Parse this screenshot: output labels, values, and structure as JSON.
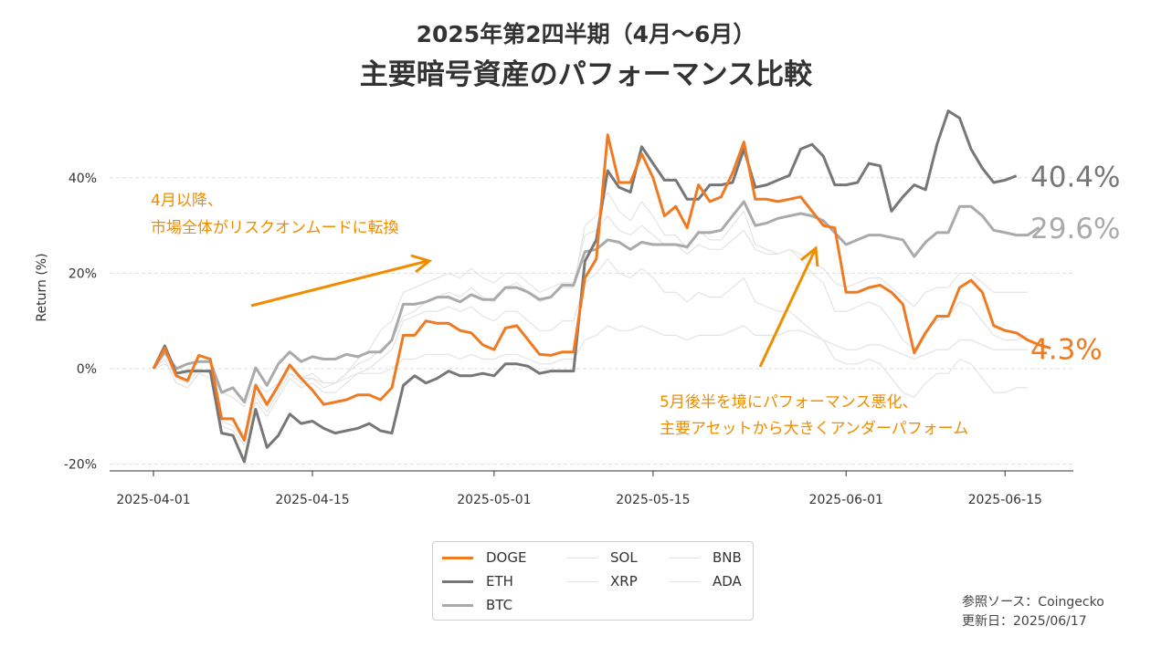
{
  "title": {
    "line1": "2025年第2四半期（4月〜6月）",
    "line2": "主要暗号資産のパフォーマンス比較"
  },
  "annotations": {
    "april_line1": "4月以降、",
    "april_line2": "市場全体がリスクオンムードに転換",
    "may_line1": "5月後半を境にパフォーマンス悪化、",
    "may_line2": "主要アセットから大きくアンダーパフォーム"
  },
  "source": {
    "line1": "参照ソース：Coingecko",
    "line2": "更新日：2025/06/17"
  },
  "colors": {
    "DOGE": "#f07a22",
    "ETH": "#777777",
    "BTC": "#aaaaaa",
    "faint": "#e4e4e4",
    "annotation": "#f08c00"
  },
  "chart_data": {
    "type": "line",
    "ylabel": "Return (%)",
    "ylim": [
      -22,
      57
    ],
    "yticks": [
      -20,
      0,
      20,
      40
    ],
    "ytick_labels": [
      "-20%",
      "0%",
      "20%",
      "40%"
    ],
    "xticks": [
      "2025-04-01",
      "2025-04-15",
      "2025-05-01",
      "2025-05-15",
      "2025-06-01",
      "2025-06-15"
    ],
    "x_start": "2025-04-01",
    "grid": "horizontal dashed",
    "legend_position": "bottom-center",
    "end_labels": {
      "DOGE": "4.3%",
      "ETH": "40.4%",
      "BTC": "29.6%"
    },
    "series": [
      {
        "name": "DOGE",
        "values": [
          0,
          4.3,
          -1.5,
          -2.5,
          2.8,
          2,
          -10.5,
          -10.5,
          -15,
          -3.5,
          -7.5,
          -3.5,
          0.8,
          -2,
          -4.5,
          -7.5,
          -7,
          -6.5,
          -5.5,
          -5.5,
          -6.5,
          -4,
          7,
          7,
          10,
          9.5,
          9.5,
          8,
          7.5,
          5,
          4,
          8.5,
          9,
          6,
          3,
          2.8,
          3.5,
          3.5,
          19,
          23,
          49,
          39,
          39,
          45,
          40,
          32,
          34,
          29.5,
          38.5,
          35,
          36,
          41,
          47.5,
          35.5,
          35.5,
          35,
          35.5,
          36,
          33,
          30,
          29.5,
          16,
          16,
          17,
          17.5,
          16,
          13.5,
          3.3,
          7.5,
          11,
          11,
          17,
          18.5,
          16,
          9,
          8,
          7.5,
          6,
          5,
          4.3
        ]
      },
      {
        "name": "ETH",
        "values": [
          0,
          4.8,
          -1,
          -0.5,
          -0.5,
          -0.5,
          -13.5,
          -14,
          -19.5,
          -8.5,
          -16.5,
          -14,
          -9.5,
          -11.5,
          -11,
          -12.5,
          -13.5,
          -13,
          -12.5,
          -11.5,
          -13,
          -13.5,
          -3.5,
          -1.5,
          -3,
          -2,
          -0.5,
          -1.5,
          -1.5,
          -1,
          -1.5,
          1,
          1,
          0.5,
          -1,
          -0.5,
          -0.5,
          -0.5,
          22.5,
          27,
          41.5,
          38,
          37,
          46.5,
          43,
          39.5,
          39.5,
          35.5,
          35.5,
          38.5,
          38.5,
          39,
          46,
          38,
          38.5,
          39.5,
          40.5,
          46,
          47,
          44.5,
          38.5,
          38.5,
          39,
          43,
          42.5,
          33,
          36,
          38.5,
          37.5,
          47,
          54,
          52.5,
          46,
          42,
          39,
          39.5,
          40.4
        ]
      },
      {
        "name": "BTC",
        "values": [
          0,
          3.5,
          0,
          1,
          1.5,
          1.5,
          -5,
          -4,
          -7,
          0.2,
          -3.5,
          1,
          3.5,
          1.5,
          2.5,
          2,
          2,
          3,
          2.5,
          3.5,
          3.5,
          6,
          13.5,
          13.5,
          14,
          15,
          15,
          14,
          15.5,
          14.5,
          14.5,
          17,
          17,
          16,
          14.5,
          15,
          17.5,
          17.5,
          24.5,
          25,
          27,
          26.5,
          25,
          26.5,
          26,
          26,
          26,
          25.5,
          28.5,
          28.5,
          29,
          32,
          35,
          30,
          30.5,
          31.5,
          32,
          32.5,
          32,
          31,
          28.5,
          26,
          27,
          28,
          28,
          27.5,
          27,
          23.5,
          26.5,
          28.5,
          28.5,
          34,
          34,
          32,
          29,
          28.5,
          28,
          28,
          29.6
        ]
      },
      {
        "name": "SOL",
        "values": [
          0,
          2,
          -3,
          -4,
          -1,
          -2,
          -11,
          -12,
          -15,
          -6,
          -9,
          -5,
          -1,
          -3,
          -2,
          -4,
          -3,
          -1,
          1,
          2,
          4,
          6,
          11,
          12,
          14,
          15,
          16,
          15,
          17,
          15,
          14,
          17,
          18,
          16,
          14,
          15,
          17,
          17,
          30,
          32,
          37,
          33,
          31,
          35,
          32,
          28,
          28,
          25,
          29,
          27,
          27,
          30,
          33,
          26,
          25,
          24,
          25,
          23,
          20,
          18,
          12,
          12,
          13,
          14,
          13,
          10,
          6,
          4,
          8,
          10,
          11,
          14,
          13,
          10,
          7,
          6,
          6,
          7
        ]
      },
      {
        "name": "XRP",
        "values": [
          0,
          3,
          -2,
          -3,
          0,
          -1,
          -10,
          -11,
          -14,
          -5,
          -8,
          -4,
          0,
          -2,
          -1,
          -3,
          -3,
          -1,
          2,
          4,
          8,
          10,
          16,
          17,
          18,
          19,
          20,
          19,
          21,
          19,
          18,
          20,
          20,
          18,
          16,
          17,
          18,
          18,
          28,
          29,
          32,
          29,
          28,
          30,
          28,
          26,
          26,
          24,
          26,
          25,
          25,
          27,
          29,
          25,
          24,
          24,
          25,
          24,
          22,
          21,
          18,
          17,
          18,
          19,
          19,
          17,
          15,
          13,
          16,
          17,
          17,
          20,
          20,
          18,
          16,
          16,
          16,
          16
        ]
      },
      {
        "name": "BNB",
        "values": [
          0,
          1,
          -1,
          -1,
          0,
          -1,
          -5,
          -6,
          -8,
          -3,
          -5,
          -3,
          -1,
          -2,
          -2,
          -3,
          -3,
          -2,
          -1,
          -1,
          -1,
          0,
          2,
          2,
          3,
          3,
          3,
          2,
          3,
          2,
          2,
          3,
          3,
          2,
          1,
          1,
          2,
          2,
          6,
          7,
          9,
          8,
          8,
          9,
          8,
          7,
          7,
          6,
          7,
          7,
          7,
          8,
          9,
          7,
          7,
          7,
          8,
          8,
          7,
          6,
          5,
          4,
          4,
          5,
          5,
          4,
          3,
          2,
          3,
          4,
          4,
          6,
          6,
          5,
          4,
          4,
          4,
          4
        ]
      },
      {
        "name": "ADA",
        "values": [
          0,
          2,
          -3,
          -4,
          -1,
          -2,
          -12,
          -13,
          -16,
          -7,
          -10,
          -6,
          -2,
          -4,
          -3,
          -5,
          -5,
          -3,
          -1,
          0,
          2,
          4,
          10,
          11,
          12,
          12,
          13,
          12,
          13,
          11,
          10,
          12,
          12,
          10,
          8,
          8,
          10,
          10,
          18,
          20,
          23,
          20,
          19,
          21,
          19,
          16,
          16,
          14,
          16,
          15,
          15,
          17,
          19,
          14,
          13,
          12,
          12,
          10,
          8,
          6,
          2,
          1,
          1,
          2,
          1,
          -2,
          -5,
          -6,
          -3,
          -1,
          -1,
          2,
          1,
          -2,
          -5,
          -5,
          -4,
          -4
        ]
      }
    ]
  },
  "legend": {
    "items": [
      "DOGE",
      "SOL",
      "BNB",
      "ETH",
      "XRP",
      "ADA",
      "BTC"
    ]
  }
}
